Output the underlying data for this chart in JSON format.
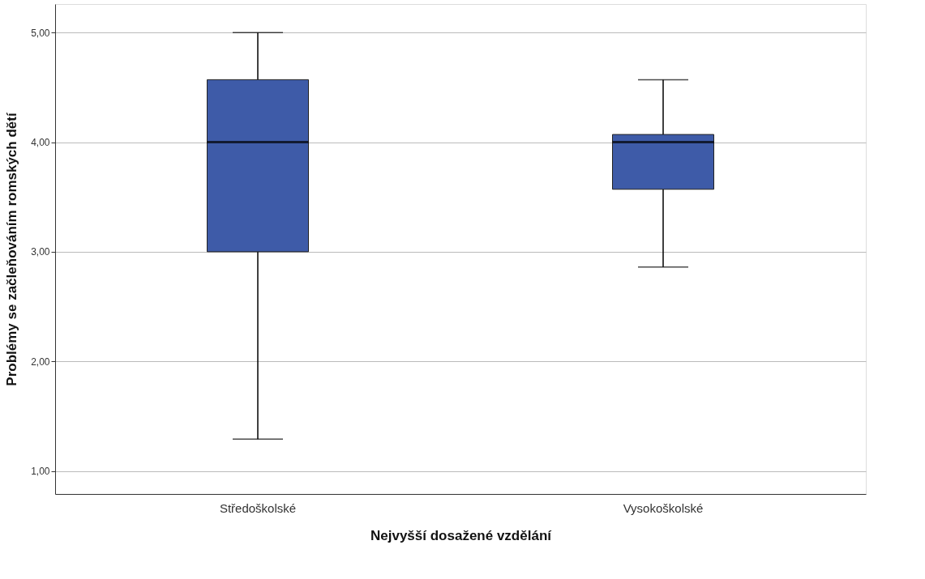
{
  "chart_data": {
    "type": "box",
    "xlabel": "Nejvyšší dosažené vzdělání",
    "ylabel": "Problémy se začleňováním romských dětí",
    "categories": [
      "Středoškolské",
      "Vysokoškolské"
    ],
    "series": [
      {
        "color": "#3e5ba8",
        "boxes": [
          {
            "low": 1.29,
            "q1": 3.0,
            "median": 4.0,
            "q3": 4.57,
            "high": 5.0
          },
          {
            "low": 2.86,
            "q1": 3.57,
            "median": 4.0,
            "q3": 4.07,
            "high": 4.57
          }
        ]
      }
    ],
    "ylim": [
      0.79,
      5.26
    ],
    "yticks": [
      {
        "value": 1,
        "label": "1,00"
      },
      {
        "value": 2,
        "label": "2,00"
      },
      {
        "value": 3,
        "label": "3,00"
      },
      {
        "value": 4,
        "label": "4,00"
      },
      {
        "value": 5,
        "label": "5,00"
      }
    ],
    "grid": "y"
  }
}
